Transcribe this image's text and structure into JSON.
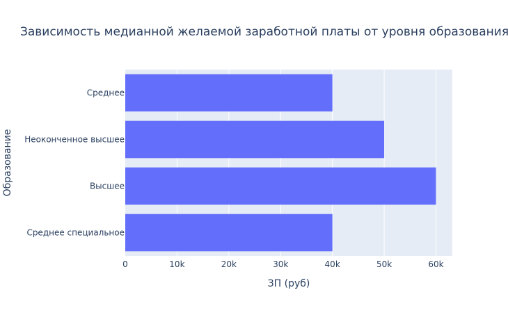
{
  "chart_data": {
    "type": "bar",
    "orientation": "horizontal",
    "title": "Зависимость медианной желаемой заработной платы от уровня образования",
    "xlabel": "ЗП (руб)",
    "ylabel": "Образование",
    "categories": [
      "Среднее",
      "Неоконченное высшее",
      "Высшее",
      "Среднее специальное"
    ],
    "values": [
      40000,
      50000,
      60000,
      40000
    ],
    "xlim": [
      0,
      63160
    ],
    "xticks": [
      0,
      10000,
      20000,
      30000,
      40000,
      50000,
      60000
    ],
    "xtick_labels": [
      "0",
      "10k",
      "20k",
      "30k",
      "40k",
      "50k",
      "60k"
    ],
    "grid": true,
    "legend": "none",
    "colors": {
      "bar": "#636efa",
      "plot_bg": "#e5ecf6",
      "grid": "#ffffff",
      "text": "#2a3f5f"
    }
  }
}
